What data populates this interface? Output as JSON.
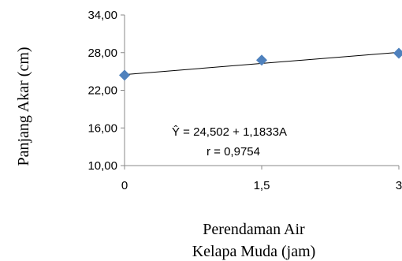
{
  "chart_data": {
    "type": "scatter",
    "x": [
      0,
      1.5,
      3
    ],
    "y": [
      24.4,
      26.8,
      27.9
    ],
    "xlim": [
      0,
      3
    ],
    "ylim": [
      10,
      34
    ],
    "xticks": [
      "0",
      "1,5",
      "3"
    ],
    "yticks": [
      "10,00",
      "16,00",
      "22,00",
      "28,00",
      "34,00"
    ],
    "ytick_values": [
      10,
      16,
      22,
      28,
      34
    ],
    "xlabel_line1": "Perendaman Air",
    "xlabel_line2": "Kelapa Muda (jam)",
    "ylabel": "Panjang Akar  (cm)",
    "trendline": {
      "intercept": 24.502,
      "slope": 1.1833
    },
    "equation": "Ŷ =   24,502 + 1,1833A",
    "r_label": "r = 0,9754",
    "marker_color": "#4f81bd",
    "grid": false,
    "legend": "none"
  }
}
